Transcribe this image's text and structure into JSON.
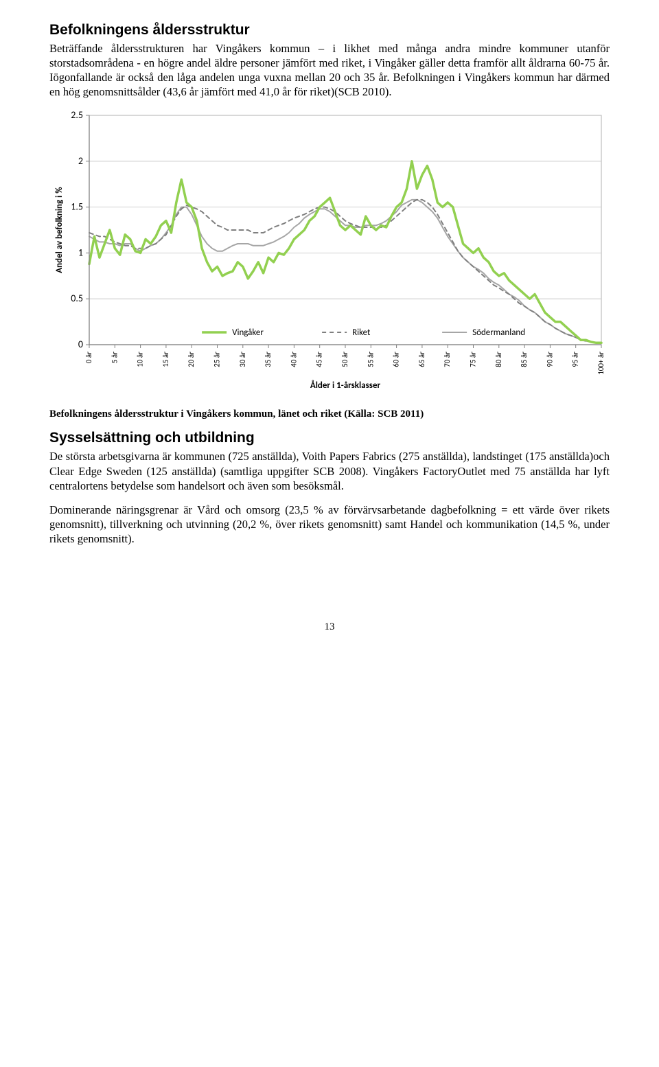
{
  "section1": {
    "heading": "Befolkningens åldersstruktur",
    "para": "Beträffande åldersstrukturen har Vingåkers kommun – i likhet med många andra mindre kommuner utanför storstadsområdena - en högre andel äldre personer jämfört med riket, i Vingåker gäller detta framför allt åldrarna 60-75 år. Iögonfallande är också den låga andelen unga vuxna mellan 20 och 35 år. Befolkningen i Vingåkers kommun har därmed en hög genomsnittsålder (43,6 år jämfört med 41,0 år för riket)(SCB 2010)."
  },
  "chart": {
    "type": "line",
    "title": "",
    "ylabel": "Andel av befolkning i %",
    "ylabel_fontsize": 13,
    "xlabel": "Ålder i 1-årsklasser",
    "xlabel_fontsize": 13,
    "xlim": [
      0,
      100
    ],
    "ylim": [
      0,
      2.5
    ],
    "ytick_step": 0.5,
    "yticks": [
      "0",
      "0.5",
      "1",
      "1.5",
      "2",
      "2.5"
    ],
    "xticks": [
      "0 år",
      "5 år",
      "10 år",
      "15 år",
      "20 år",
      "25 år",
      "30 år",
      "35 år",
      "40 år",
      "45 år",
      "50 år",
      "55 år",
      "60 år",
      "65 år",
      "70 år",
      "75 år",
      "80 år",
      "85 år",
      "90 år",
      "95 år",
      "100+ år"
    ],
    "grid_color": "#bfbfbf",
    "axis_color": "#808080",
    "background_color": "#ffffff",
    "plot_border_color": "#bfbfbf",
    "tick_fontsize": 11,
    "legend_fontsize": 13,
    "legend": [
      {
        "label": "Vingåker",
        "color": "#92d050",
        "dash": "none",
        "width": 3.5
      },
      {
        "label": "Riket",
        "color": "#7f7f7f",
        "dash": "6,5",
        "width": 2
      },
      {
        "label": "Södermanland",
        "color": "#a6a6a6",
        "dash": "none",
        "width": 2
      }
    ],
    "series": {
      "vingaker": {
        "color": "#92d050",
        "dash": "none",
        "width": 3.5,
        "y": [
          0.88,
          1.18,
          0.95,
          1.1,
          1.25,
          1.05,
          0.98,
          1.2,
          1.15,
          1.02,
          1.0,
          1.15,
          1.1,
          1.18,
          1.3,
          1.35,
          1.22,
          1.55,
          1.8,
          1.55,
          1.5,
          1.35,
          1.05,
          0.9,
          0.8,
          0.85,
          0.75,
          0.78,
          0.8,
          0.9,
          0.85,
          0.72,
          0.8,
          0.9,
          0.78,
          0.95,
          0.9,
          1.0,
          0.98,
          1.05,
          1.15,
          1.2,
          1.25,
          1.35,
          1.4,
          1.5,
          1.55,
          1.6,
          1.45,
          1.3,
          1.25,
          1.3,
          1.25,
          1.2,
          1.4,
          1.3,
          1.25,
          1.3,
          1.28,
          1.4,
          1.5,
          1.55,
          1.7,
          2.0,
          1.7,
          1.85,
          1.95,
          1.8,
          1.55,
          1.5,
          1.55,
          1.5,
          1.3,
          1.1,
          1.05,
          1.0,
          1.05,
          0.95,
          0.9,
          0.8,
          0.75,
          0.78,
          0.7,
          0.65,
          0.6,
          0.55,
          0.5,
          0.55,
          0.45,
          0.35,
          0.3,
          0.25,
          0.25,
          0.2,
          0.15,
          0.1,
          0.05,
          0.05,
          0.03,
          0.02,
          0.02
        ]
      },
      "riket": {
        "color": "#7f7f7f",
        "dash": "6,5",
        "width": 2,
        "y": [
          1.22,
          1.2,
          1.18,
          1.18,
          1.15,
          1.12,
          1.1,
          1.08,
          1.08,
          1.05,
          1.05,
          1.05,
          1.08,
          1.1,
          1.15,
          1.2,
          1.3,
          1.4,
          1.48,
          1.52,
          1.5,
          1.48,
          1.45,
          1.4,
          1.35,
          1.3,
          1.28,
          1.25,
          1.25,
          1.25,
          1.25,
          1.25,
          1.22,
          1.22,
          1.22,
          1.25,
          1.28,
          1.3,
          1.32,
          1.35,
          1.38,
          1.4,
          1.42,
          1.45,
          1.48,
          1.5,
          1.5,
          1.48,
          1.45,
          1.4,
          1.35,
          1.32,
          1.3,
          1.28,
          1.28,
          1.28,
          1.28,
          1.28,
          1.3,
          1.35,
          1.4,
          1.45,
          1.5,
          1.55,
          1.58,
          1.58,
          1.55,
          1.5,
          1.42,
          1.32,
          1.22,
          1.12,
          1.02,
          0.95,
          0.9,
          0.85,
          0.8,
          0.75,
          0.7,
          0.65,
          0.62,
          0.58,
          0.55,
          0.5,
          0.45,
          0.42,
          0.38,
          0.35,
          0.3,
          0.25,
          0.22,
          0.18,
          0.15,
          0.12,
          0.1,
          0.08,
          0.05,
          0.04,
          0.03,
          0.02,
          0.02
        ]
      },
      "sodermanland": {
        "color": "#a6a6a6",
        "dash": "none",
        "width": 2,
        "y": [
          1.18,
          1.15,
          1.12,
          1.12,
          1.1,
          1.1,
          1.08,
          1.1,
          1.1,
          1.05,
          1.02,
          1.05,
          1.08,
          1.1,
          1.15,
          1.22,
          1.3,
          1.42,
          1.5,
          1.5,
          1.42,
          1.3,
          1.18,
          1.1,
          1.05,
          1.02,
          1.02,
          1.05,
          1.08,
          1.1,
          1.1,
          1.1,
          1.08,
          1.08,
          1.08,
          1.1,
          1.12,
          1.15,
          1.18,
          1.22,
          1.28,
          1.32,
          1.38,
          1.42,
          1.45,
          1.48,
          1.48,
          1.45,
          1.4,
          1.35,
          1.3,
          1.3,
          1.28,
          1.28,
          1.3,
          1.3,
          1.3,
          1.32,
          1.35,
          1.4,
          1.45,
          1.52,
          1.55,
          1.58,
          1.58,
          1.55,
          1.5,
          1.45,
          1.38,
          1.28,
          1.18,
          1.1,
          1.02,
          0.95,
          0.9,
          0.85,
          0.82,
          0.78,
          0.72,
          0.68,
          0.65,
          0.6,
          0.55,
          0.52,
          0.48,
          0.42,
          0.38,
          0.35,
          0.3,
          0.25,
          0.22,
          0.18,
          0.15,
          0.12,
          0.1,
          0.08,
          0.05,
          0.04,
          0.03,
          0.02,
          0.02
        ]
      }
    }
  },
  "caption": "Befolkningens åldersstruktur i Vingåkers kommun, länet och riket (Källa: SCB 2011)",
  "section2": {
    "heading": "Sysselsättning och utbildning",
    "para1": "De största arbetsgivarna är kommunen (725 anställda), Voith Papers Fabrics (275 anställda), landstinget (175 anställda)och Clear Edge Sweden (125 anställda) (samtliga uppgifter SCB 2008). Vingåkers FactoryOutlet med 75 anställda har lyft centralortens betydelse som handelsort och även som besöksmål.",
    "para2": "Dominerande näringsgrenar är Vård och omsorg (23,5 % av förvärvsarbetande dagbefolkning = ett värde över rikets genomsnitt), tillverkning och utvinning (20,2 %, över rikets genomsnitt) samt Handel och kommunikation (14,5 %, under rikets genomsnitt)."
  },
  "pagenum": "13"
}
